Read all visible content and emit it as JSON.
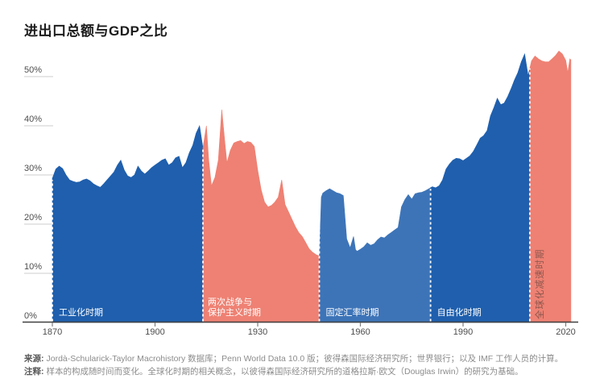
{
  "title": "进出口总额与GDP之比",
  "source": {
    "label": "来源:",
    "text": "Jordà-Schularick-Taylor Macrohistory 数据库；Penn World Data 10.0 版；彼得森国际经济研究所；世界银行；以及 IMF 工作人员的计算。"
  },
  "note": {
    "label": "注释:",
    "text": "样本的构成随时间而变化。全球化时期的相关概念，以彼得森国际经济研究所的道格拉斯·欧文（Douglas Irwin）的研究为基础。"
  },
  "colors": {
    "dark_blue": "#1f5fad",
    "medium_blue": "#3d74b8",
    "salmon": "#ee8173",
    "axis_line": "#404040",
    "tick_text": "#4d4d4d",
    "grid_stub": "#cccccc",
    "divider": "#ffffff",
    "vertical_label_text": "#8d564e",
    "title_text": "#1b1b1b"
  },
  "chart_data": {
    "type": "area",
    "title": "进出口总额与GDP之比",
    "xlabel": "",
    "ylabel": "",
    "xlim": [
      1870,
      2021.5
    ],
    "ylim": [
      0,
      55
    ],
    "grid": "left-stub-ticks-only",
    "x_ticks": [
      "1870",
      "1900",
      "1930",
      "1960",
      "1990",
      "2020"
    ],
    "x_tick_years": [
      1870,
      1900,
      1930,
      1960,
      1990,
      2020
    ],
    "y_ticks": [
      "0%",
      "10%",
      "20%",
      "30%",
      "40%",
      "50%"
    ],
    "y_tick_values": [
      0,
      10,
      20,
      30,
      40,
      50
    ],
    "periods": [
      {
        "id": "industrialization",
        "label": "工业化时期",
        "label_lines": [
          "工业化时期"
        ],
        "start": 1870,
        "end": 1914,
        "color": "#1f5fad",
        "divider_value": 29.3,
        "vertical_label": false
      },
      {
        "id": "wars-protectionism",
        "label": "两次战争与保护主义时期",
        "label_lines": [
          "两次战争与",
          "保护主义时期"
        ],
        "start": 1914,
        "end": 1948,
        "color": "#ee8173",
        "divider_value": 35.8,
        "vertical_label": false
      },
      {
        "id": "fixed-exchange",
        "label": "固定汇率时期",
        "label_lines": [
          "固定汇率时期"
        ],
        "start": 1948,
        "end": 1980.5,
        "color": "#3d74b8",
        "divider_value": 25.8,
        "vertical_label": false
      },
      {
        "id": "liberalization",
        "label": "自由化时期",
        "label_lines": [
          "自由化时期"
        ],
        "start": 1980.5,
        "end": 2009.5,
        "color": "#1f5fad",
        "divider_value": 27.5,
        "vertical_label": false
      },
      {
        "id": "slowbalization",
        "label": "全球化减速时期",
        "label_lines": [
          "全球化减速时期"
        ],
        "start": 2009.5,
        "end": 2021.5,
        "color": "#ee8173",
        "divider_value": 52,
        "vertical_label": true
      }
    ],
    "series_name": "进出口总额与GDP之比 (%)",
    "points": [
      [
        1870,
        29.3
      ],
      [
        1871,
        31.2
      ],
      [
        1872,
        31.8
      ],
      [
        1873,
        31.3
      ],
      [
        1874,
        30.0
      ],
      [
        1875,
        29.0
      ],
      [
        1876,
        28.7
      ],
      [
        1877,
        28.5
      ],
      [
        1878,
        28.6
      ],
      [
        1879,
        29.0
      ],
      [
        1880,
        29.2
      ],
      [
        1881,
        28.8
      ],
      [
        1882,
        28.2
      ],
      [
        1883,
        27.8
      ],
      [
        1884,
        27.5
      ],
      [
        1885,
        28.2
      ],
      [
        1886,
        29.0
      ],
      [
        1887,
        29.8
      ],
      [
        1888,
        30.6
      ],
      [
        1889,
        32.0
      ],
      [
        1890,
        33.0
      ],
      [
        1891,
        31.0
      ],
      [
        1892,
        29.8
      ],
      [
        1893,
        29.5
      ],
      [
        1894,
        30.0
      ],
      [
        1895,
        31.8
      ],
      [
        1896,
        30.8
      ],
      [
        1897,
        30.2
      ],
      [
        1898,
        30.8
      ],
      [
        1899,
        31.5
      ],
      [
        1900,
        32.0
      ],
      [
        1901,
        32.5
      ],
      [
        1902,
        33.0
      ],
      [
        1903,
        33.3
      ],
      [
        1904,
        32.0
      ],
      [
        1905,
        32.5
      ],
      [
        1906,
        33.5
      ],
      [
        1907,
        33.8
      ],
      [
        1908,
        31.5
      ],
      [
        1909,
        32.5
      ],
      [
        1910,
        34.5
      ],
      [
        1911,
        36.0
      ],
      [
        1912,
        38.5
      ],
      [
        1913,
        40.0
      ],
      [
        1914,
        35.5
      ],
      [
        1915,
        40.0
      ],
      [
        1915.7,
        33.0
      ],
      [
        1916.5,
        27.8
      ],
      [
        1917.5,
        29.5
      ],
      [
        1918.5,
        33.0
      ],
      [
        1919.5,
        43.3
      ],
      [
        1920.5,
        36.0
      ],
      [
        1921,
        32.5
      ],
      [
        1922,
        35.0
      ],
      [
        1923,
        36.5
      ],
      [
        1924,
        36.8
      ],
      [
        1925,
        37.0
      ],
      [
        1926,
        36.4
      ],
      [
        1927,
        36.8
      ],
      [
        1928,
        36.6
      ],
      [
        1929,
        35.8
      ],
      [
        1930,
        31.0
      ],
      [
        1931,
        27.0
      ],
      [
        1932,
        24.5
      ],
      [
        1933,
        23.5
      ],
      [
        1934,
        23.8
      ],
      [
        1935,
        24.5
      ],
      [
        1936,
        25.5
      ],
      [
        1937,
        29.0
      ],
      [
        1938,
        24.0
      ],
      [
        1939,
        22.5
      ],
      [
        1940,
        21.0
      ],
      [
        1941,
        19.5
      ],
      [
        1942,
        18.3
      ],
      [
        1943,
        17.5
      ],
      [
        1944,
        16.3
      ],
      [
        1945,
        15.0
      ],
      [
        1946,
        14.3
      ],
      [
        1947,
        13.8
      ],
      [
        1948,
        13.5
      ],
      [
        1948.6,
        25.5
      ],
      [
        1949,
        26.3
      ],
      [
        1950,
        26.8
      ],
      [
        1951,
        27.2
      ],
      [
        1952,
        26.8
      ],
      [
        1953,
        26.4
      ],
      [
        1954,
        26.2
      ],
      [
        1955,
        25.8
      ],
      [
        1956,
        17.0
      ],
      [
        1957,
        15.2
      ],
      [
        1958,
        17.5
      ],
      [
        1958.6,
        14.8
      ],
      [
        1959,
        14.5
      ],
      [
        1960,
        14.9
      ],
      [
        1961,
        15.4
      ],
      [
        1962,
        16.2
      ],
      [
        1963,
        15.7
      ],
      [
        1964,
        16.0
      ],
      [
        1965,
        16.8
      ],
      [
        1966,
        17.4
      ],
      [
        1967,
        17.2
      ],
      [
        1968,
        17.8
      ],
      [
        1969,
        18.3
      ],
      [
        1970,
        18.8
      ],
      [
        1971,
        19.3
      ],
      [
        1972,
        23.5
      ],
      [
        1973,
        25.0
      ],
      [
        1974,
        26.0
      ],
      [
        1975,
        25.1
      ],
      [
        1976,
        26.2
      ],
      [
        1977,
        26.4
      ],
      [
        1978,
        26.5
      ],
      [
        1979,
        26.8
      ],
      [
        1980,
        27.2
      ],
      [
        1981,
        27.6
      ],
      [
        1982,
        27.4
      ],
      [
        1983,
        27.8
      ],
      [
        1984,
        29.0
      ],
      [
        1985,
        31.2
      ],
      [
        1986,
        32.2
      ],
      [
        1987,
        33.0
      ],
      [
        1988,
        33.4
      ],
      [
        1989,
        33.3
      ],
      [
        1990,
        32.9
      ],
      [
        1991,
        33.4
      ],
      [
        1992,
        33.9
      ],
      [
        1993,
        34.8
      ],
      [
        1994,
        36.1
      ],
      [
        1995,
        37.5
      ],
      [
        1996,
        38.0
      ],
      [
        1997,
        39.0
      ],
      [
        1998,
        42.0
      ],
      [
        1999,
        43.7
      ],
      [
        2000,
        45.6
      ],
      [
        2001,
        44.3
      ],
      [
        2002,
        44.6
      ],
      [
        2003,
        45.9
      ],
      [
        2004,
        47.5
      ],
      [
        2005,
        49.3
      ],
      [
        2006,
        50.8
      ],
      [
        2007,
        53.0
      ],
      [
        2008,
        54.6
      ],
      [
        2009,
        50.2
      ],
      [
        2010,
        53.2
      ],
      [
        2011,
        54.2
      ],
      [
        2012,
        53.6
      ],
      [
        2013,
        53.2
      ],
      [
        2014,
        53.0
      ],
      [
        2015,
        53.0
      ],
      [
        2016,
        53.6
      ],
      [
        2017,
        54.3
      ],
      [
        2018,
        55.2
      ],
      [
        2019,
        54.6
      ],
      [
        2020,
        53.3
      ],
      [
        2020.6,
        50.8
      ],
      [
        2021.2,
        53.6
      ],
      [
        2021.5,
        53.4
      ]
    ]
  }
}
